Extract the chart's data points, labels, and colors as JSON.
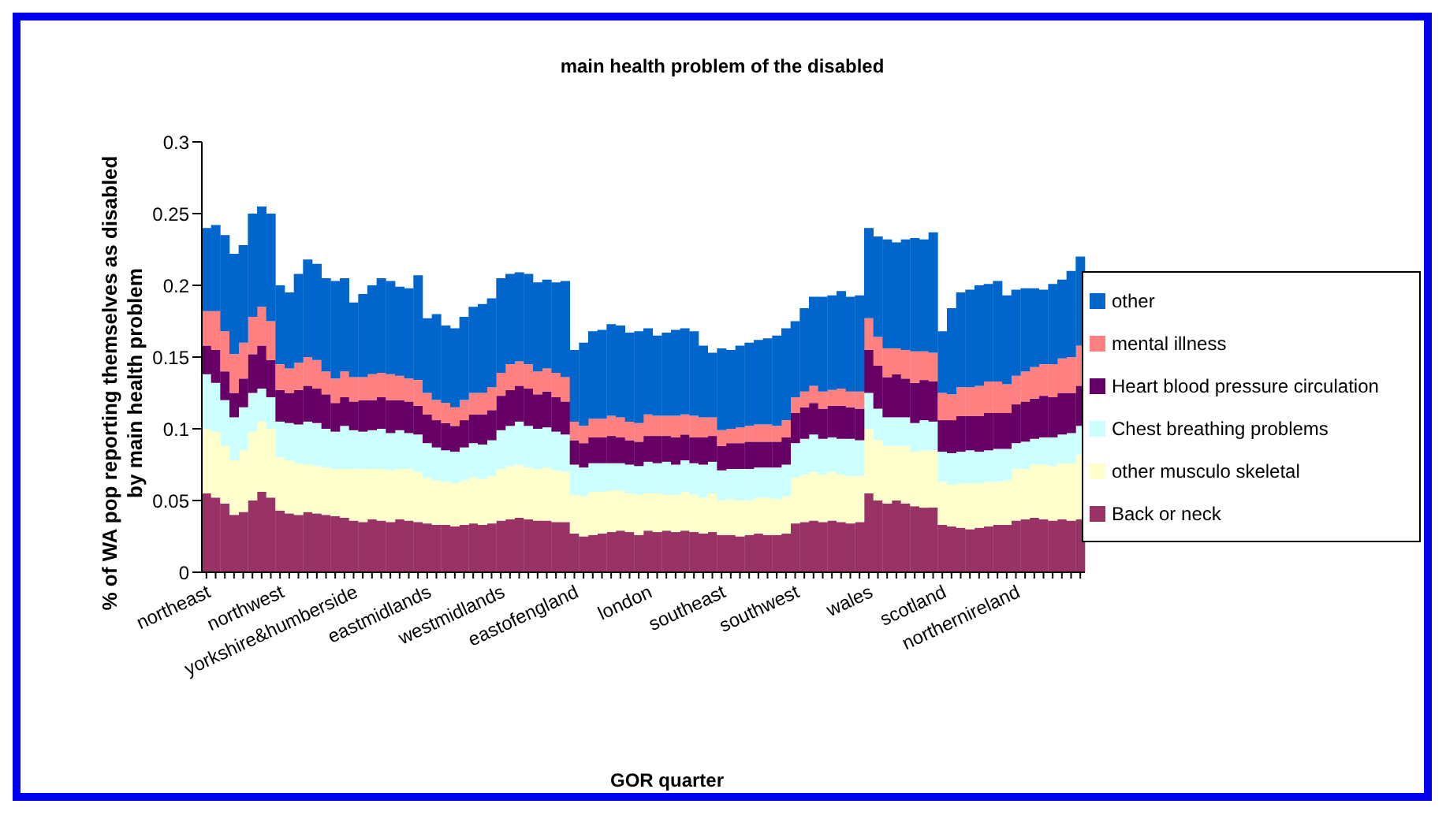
{
  "chart_data": {
    "type": "bar",
    "stacked": true,
    "title": "main health problem of the disabled",
    "xlabel": "GOR quarter",
    "ylabel": "% of WA pop reporting themselves as disabled by main health problem",
    "legend": "right",
    "ylim": [
      0,
      0.3
    ],
    "yticks": [
      0,
      0.05,
      0.1,
      0.15,
      0.2,
      0.25,
      0.3
    ],
    "categories": [
      "northeast",
      null,
      null,
      null,
      null,
      null,
      null,
      null,
      "northwest",
      null,
      null,
      null,
      null,
      null,
      null,
      null,
      "yorkshire&humberside",
      null,
      null,
      null,
      null,
      null,
      null,
      null,
      "eastmidlands",
      null,
      null,
      null,
      null,
      null,
      null,
      null,
      "westmidlands",
      null,
      null,
      null,
      null,
      null,
      null,
      null,
      "eastofengland",
      null,
      null,
      null,
      null,
      null,
      null,
      null,
      "london",
      null,
      null,
      null,
      null,
      null,
      null,
      null,
      "southeast",
      null,
      null,
      null,
      null,
      null,
      null,
      null,
      "southwest",
      null,
      null,
      null,
      null,
      null,
      null,
      null,
      "wales",
      null,
      null,
      null,
      null,
      null,
      null,
      null,
      "scotland",
      null,
      null,
      null,
      null,
      null,
      null,
      null,
      "northernireland",
      null,
      null,
      null,
      null,
      null,
      null,
      null
    ],
    "series": [
      {
        "name": "Back or neck",
        "color": "#993366",
        "values": [
          0.055,
          0.052,
          0.048,
          0.04,
          0.042,
          0.05,
          0.056,
          0.052,
          0.043,
          0.041,
          0.04,
          0.042,
          0.041,
          0.04,
          0.039,
          0.038,
          0.036,
          0.035,
          0.037,
          0.036,
          0.035,
          0.037,
          0.036,
          0.035,
          0.034,
          0.033,
          0.033,
          0.032,
          0.033,
          0.034,
          0.033,
          0.034,
          0.036,
          0.037,
          0.038,
          0.037,
          0.036,
          0.036,
          0.035,
          0.035,
          0.027,
          0.025,
          0.026,
          0.027,
          0.028,
          0.029,
          0.028,
          0.026,
          0.029,
          0.028,
          0.029,
          0.028,
          0.029,
          0.028,
          0.027,
          0.028,
          0.026,
          0.026,
          0.025,
          0.026,
          0.027,
          0.026,
          0.026,
          0.027,
          0.034,
          0.035,
          0.036,
          0.035,
          0.036,
          0.035,
          0.034,
          0.035,
          0.055,
          0.05,
          0.048,
          0.05,
          0.048,
          0.046,
          0.045,
          0.045,
          0.033,
          0.032,
          0.031,
          0.03,
          0.031,
          0.032,
          0.033,
          0.033,
          0.036,
          0.037,
          0.038,
          0.037,
          0.036,
          0.037,
          0.036,
          0.037
        ]
      },
      {
        "name": "other musculo skeletal",
        "color": "#ffffcc",
        "values": [
          0.045,
          0.046,
          0.04,
          0.038,
          0.043,
          0.048,
          0.049,
          0.048,
          0.037,
          0.037,
          0.036,
          0.033,
          0.033,
          0.033,
          0.033,
          0.034,
          0.036,
          0.037,
          0.035,
          0.036,
          0.036,
          0.035,
          0.036,
          0.035,
          0.032,
          0.031,
          0.03,
          0.03,
          0.031,
          0.032,
          0.032,
          0.033,
          0.036,
          0.037,
          0.037,
          0.036,
          0.036,
          0.037,
          0.036,
          0.035,
          0.027,
          0.028,
          0.03,
          0.029,
          0.029,
          0.028,
          0.027,
          0.028,
          0.026,
          0.027,
          0.025,
          0.026,
          0.027,
          0.026,
          0.025,
          0.027,
          0.024,
          0.025,
          0.025,
          0.024,
          0.025,
          0.026,
          0.025,
          0.026,
          0.032,
          0.033,
          0.034,
          0.033,
          0.034,
          0.033,
          0.033,
          0.032,
          0.045,
          0.042,
          0.04,
          0.038,
          0.04,
          0.038,
          0.04,
          0.04,
          0.03,
          0.029,
          0.031,
          0.032,
          0.031,
          0.031,
          0.03,
          0.031,
          0.036,
          0.035,
          0.037,
          0.038,
          0.038,
          0.039,
          0.04,
          0.045
        ]
      },
      {
        "name": "Chest breathing problems",
        "color": "#ccffff",
        "values": [
          0.038,
          0.034,
          0.032,
          0.03,
          0.03,
          0.027,
          0.023,
          0.022,
          0.025,
          0.026,
          0.027,
          0.03,
          0.03,
          0.027,
          0.026,
          0.03,
          0.027,
          0.026,
          0.027,
          0.028,
          0.026,
          0.027,
          0.025,
          0.026,
          0.024,
          0.023,
          0.022,
          0.022,
          0.023,
          0.024,
          0.024,
          0.025,
          0.027,
          0.028,
          0.03,
          0.029,
          0.028,
          0.028,
          0.027,
          0.026,
          0.021,
          0.02,
          0.02,
          0.02,
          0.019,
          0.019,
          0.02,
          0.02,
          0.022,
          0.021,
          0.023,
          0.021,
          0.022,
          0.022,
          0.023,
          0.022,
          0.021,
          0.021,
          0.022,
          0.022,
          0.021,
          0.021,
          0.022,
          0.022,
          0.024,
          0.025,
          0.026,
          0.025,
          0.024,
          0.025,
          0.026,
          0.025,
          0.025,
          0.022,
          0.02,
          0.02,
          0.02,
          0.02,
          0.021,
          0.02,
          0.021,
          0.022,
          0.022,
          0.023,
          0.022,
          0.022,
          0.023,
          0.022,
          0.018,
          0.019,
          0.018,
          0.019,
          0.02,
          0.02,
          0.021,
          0.02
        ]
      },
      {
        "name": "Heart blood pressure circulation",
        "color": "#660066",
        "values": [
          0.02,
          0.023,
          0.02,
          0.017,
          0.02,
          0.027,
          0.03,
          0.026,
          0.022,
          0.021,
          0.024,
          0.025,
          0.024,
          0.024,
          0.02,
          0.02,
          0.02,
          0.022,
          0.021,
          0.022,
          0.023,
          0.021,
          0.022,
          0.02,
          0.02,
          0.019,
          0.019,
          0.018,
          0.019,
          0.02,
          0.021,
          0.021,
          0.024,
          0.025,
          0.025,
          0.026,
          0.024,
          0.025,
          0.024,
          0.023,
          0.017,
          0.017,
          0.018,
          0.018,
          0.019,
          0.018,
          0.017,
          0.017,
          0.018,
          0.019,
          0.018,
          0.019,
          0.018,
          0.018,
          0.019,
          0.018,
          0.017,
          0.018,
          0.018,
          0.019,
          0.018,
          0.018,
          0.018,
          0.019,
          0.021,
          0.022,
          0.022,
          0.021,
          0.022,
          0.023,
          0.022,
          0.022,
          0.03,
          0.03,
          0.028,
          0.03,
          0.027,
          0.028,
          0.028,
          0.028,
          0.022,
          0.023,
          0.025,
          0.024,
          0.025,
          0.026,
          0.025,
          0.025,
          0.027,
          0.028,
          0.028,
          0.029,
          0.028,
          0.029,
          0.028,
          0.028
        ]
      },
      {
        "name": "mental illness",
        "color": "#ff8080",
        "values": [
          0.024,
          0.027,
          0.028,
          0.027,
          0.025,
          0.026,
          0.027,
          0.027,
          0.018,
          0.017,
          0.019,
          0.02,
          0.02,
          0.016,
          0.017,
          0.018,
          0.017,
          0.016,
          0.018,
          0.017,
          0.018,
          0.017,
          0.016,
          0.018,
          0.015,
          0.014,
          0.014,
          0.013,
          0.014,
          0.015,
          0.015,
          0.016,
          0.016,
          0.018,
          0.017,
          0.017,
          0.016,
          0.016,
          0.017,
          0.017,
          0.013,
          0.012,
          0.013,
          0.013,
          0.014,
          0.014,
          0.013,
          0.013,
          0.015,
          0.014,
          0.014,
          0.015,
          0.014,
          0.015,
          0.014,
          0.013,
          0.011,
          0.01,
          0.011,
          0.011,
          0.012,
          0.012,
          0.011,
          0.012,
          0.011,
          0.011,
          0.012,
          0.012,
          0.011,
          0.012,
          0.011,
          0.012,
          0.022,
          0.02,
          0.02,
          0.018,
          0.02,
          0.022,
          0.02,
          0.02,
          0.019,
          0.018,
          0.02,
          0.02,
          0.021,
          0.022,
          0.022,
          0.02,
          0.02,
          0.021,
          0.022,
          0.022,
          0.023,
          0.024,
          0.025,
          0.028
        ]
      },
      {
        "name": "other",
        "color": "#0066cc",
        "values": [
          0.058,
          0.06,
          0.067,
          0.07,
          0.068,
          0.072,
          0.07,
          0.075,
          0.055,
          0.053,
          0.062,
          0.068,
          0.067,
          0.065,
          0.068,
          0.065,
          0.052,
          0.058,
          0.062,
          0.066,
          0.065,
          0.062,
          0.063,
          0.073,
          0.052,
          0.06,
          0.054,
          0.055,
          0.058,
          0.06,
          0.062,
          0.062,
          0.066,
          0.063,
          0.062,
          0.063,
          0.062,
          0.062,
          0.063,
          0.067,
          0.05,
          0.058,
          0.061,
          0.062,
          0.064,
          0.064,
          0.062,
          0.064,
          0.06,
          0.056,
          0.058,
          0.06,
          0.06,
          0.059,
          0.05,
          0.045,
          0.057,
          0.055,
          0.057,
          0.058,
          0.059,
          0.06,
          0.063,
          0.064,
          0.053,
          0.058,
          0.062,
          0.066,
          0.066,
          0.068,
          0.066,
          0.067,
          0.063,
          0.07,
          0.076,
          0.074,
          0.077,
          0.079,
          0.078,
          0.084,
          0.043,
          0.06,
          0.066,
          0.068,
          0.07,
          0.068,
          0.07,
          0.062,
          0.06,
          0.058,
          0.055,
          0.052,
          0.056,
          0.055,
          0.06,
          0.062
        ]
      }
    ]
  }
}
